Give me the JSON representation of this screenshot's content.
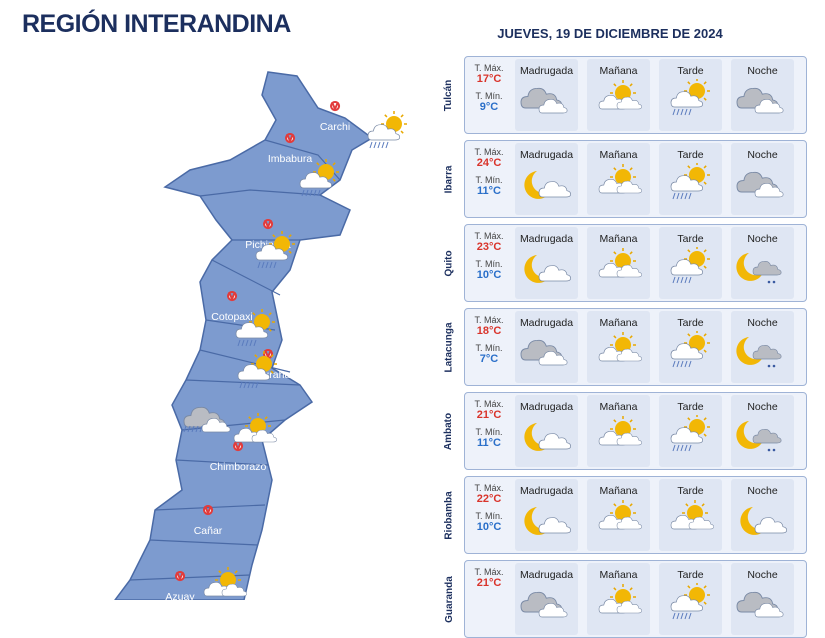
{
  "header": {
    "title": "REGIÓN INTERANDINA",
    "date": "JUEVES, 19 DE DICIEMBRE DE 2024"
  },
  "map": {
    "labels": [
      "Carchi",
      "Imbabura",
      "Pichincha",
      "Cotopaxi",
      "Tungurahua",
      "Chimborazo",
      "Cañar",
      "Azuay"
    ]
  },
  "table": {
    "columns": [
      "Madrugada",
      "Mañana",
      "Tarde",
      "Noche"
    ],
    "max_label": "T. Máx.",
    "min_label": "T. Mín.",
    "rows": [
      {
        "city": "Tulcán",
        "max": "17°C",
        "min": "9°C"
      },
      {
        "city": "Ibarra",
        "max": "24°C",
        "min": "11°C"
      },
      {
        "city": "Quito",
        "max": "23°C",
        "min": "10°C"
      },
      {
        "city": "Latacunga",
        "max": "18°C",
        "min": "7°C"
      },
      {
        "city": "Ambato",
        "max": "21°C",
        "min": "11°C"
      },
      {
        "city": "Riobamba",
        "max": "22°C",
        "min": "10°C"
      },
      {
        "city": "Guaranda",
        "max": "21°C"
      }
    ]
  }
}
